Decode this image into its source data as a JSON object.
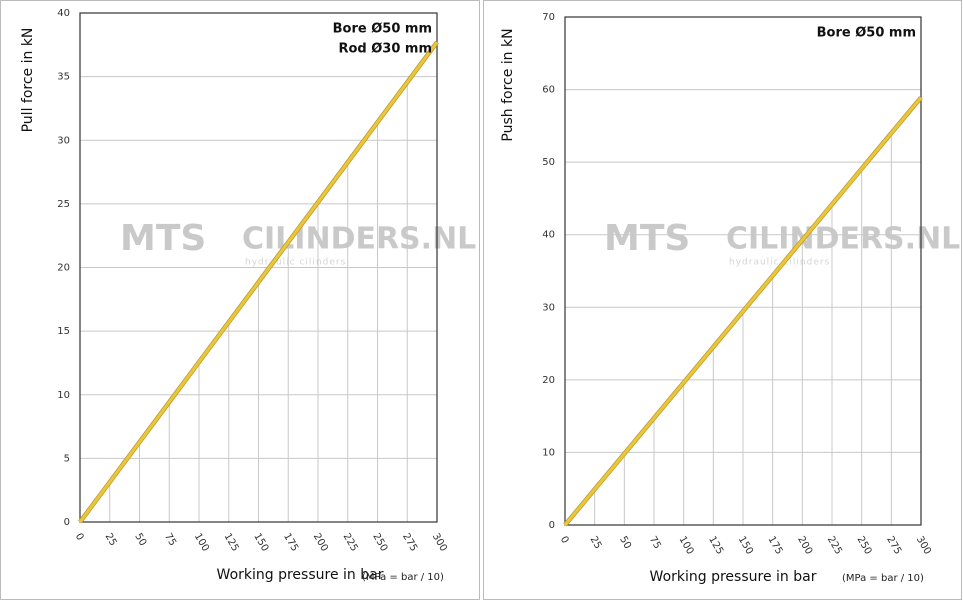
{
  "watermark": {
    "brand": "MTS",
    "site": "CILINDERS.NL",
    "tagline": "hydraulic cilinders"
  },
  "chart_data": [
    {
      "type": "line",
      "ylabel": "Pull force in kN",
      "xlabel": "Working pressure in bar",
      "xlabel_note": "(MPa = bar / 10)",
      "annotations": [
        "Bore Ø50 mm",
        "Rod  Ø30 mm"
      ],
      "x": [
        0,
        25,
        50,
        75,
        100,
        125,
        150,
        175,
        200,
        225,
        250,
        275,
        300
      ],
      "values": [
        0,
        3.14,
        6.28,
        9.42,
        12.57,
        15.71,
        18.85,
        21.99,
        25.13,
        28.27,
        31.42,
        34.56,
        37.7
      ],
      "color": "#ecc63a",
      "grid": true,
      "xlim": [
        0,
        300
      ],
      "xticks": [
        0,
        25,
        50,
        75,
        100,
        125,
        150,
        175,
        200,
        225,
        250,
        275,
        300
      ],
      "ylim": [
        0,
        40
      ],
      "yticks": [
        0,
        5,
        10,
        15,
        20,
        25,
        30,
        35,
        40
      ]
    },
    {
      "type": "line",
      "ylabel": "Push force in kN",
      "xlabel": "Working pressure in bar",
      "xlabel_note": "(MPa = bar / 10)",
      "annotations": [
        "Bore Ø50 mm"
      ],
      "x": [
        0,
        25,
        50,
        75,
        100,
        125,
        150,
        175,
        200,
        225,
        250,
        275,
        300
      ],
      "values": [
        0,
        4.91,
        9.82,
        14.73,
        19.63,
        24.54,
        29.45,
        34.36,
        39.27,
        44.18,
        49.09,
        54.0,
        58.9
      ],
      "color": "#ecc63a",
      "grid": true,
      "xlim": [
        0,
        300
      ],
      "xticks": [
        0,
        25,
        50,
        75,
        100,
        125,
        150,
        175,
        200,
        225,
        250,
        275,
        300
      ],
      "ylim": [
        0,
        70
      ],
      "yticks": [
        0,
        10,
        20,
        30,
        40,
        50,
        60,
        70
      ]
    }
  ]
}
